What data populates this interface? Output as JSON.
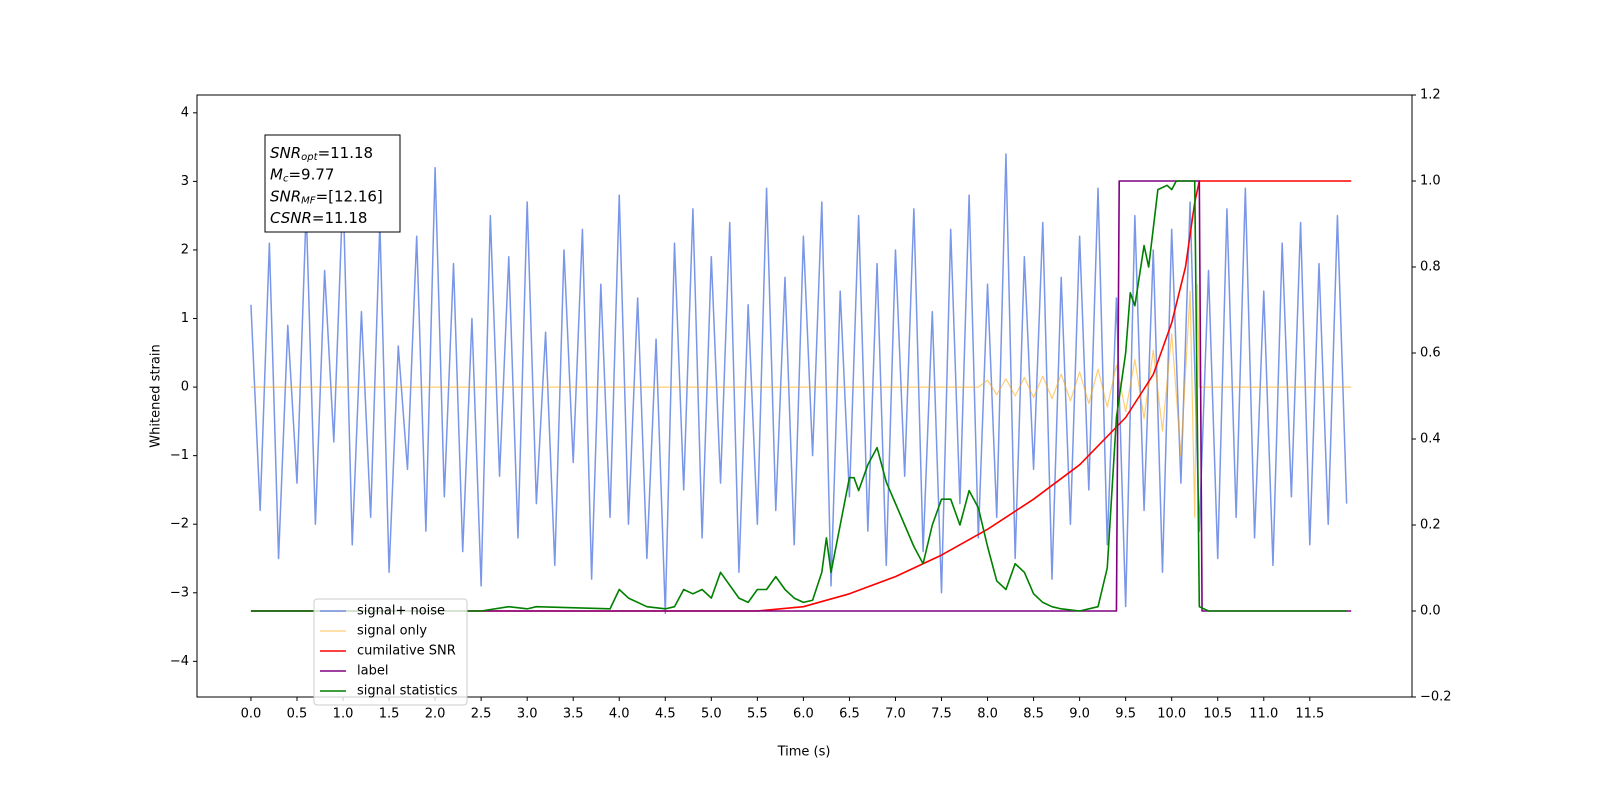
{
  "chart_data": {
    "type": "line",
    "xlabel": "Time (s)",
    "ylabel": "Whitened strain",
    "xlim": [
      -0.586,
      12.61
    ],
    "ylim": [
      -4.52,
      4.26
    ],
    "y2lim": [
      -0.2,
      1.2
    ],
    "xticks": [
      {
        "value": 0,
        "label": "0.0"
      },
      0.5,
      {
        "value": 1,
        "label": "1.0"
      },
      1.5,
      {
        "value": 2,
        "label": "2.0"
      },
      2.5,
      {
        "value": 3,
        "label": "3.0"
      },
      3.5,
      {
        "value": 4,
        "label": "4.0"
      },
      4.5,
      {
        "value": 5,
        "label": "5.0"
      },
      5.5,
      {
        "value": 6,
        "label": "6.0"
      },
      6.5,
      {
        "value": 7,
        "label": "7.0"
      },
      7.5,
      {
        "value": 8,
        "label": "8.0"
      },
      8.5,
      {
        "value": 9,
        "label": "9.0"
      },
      9.5,
      {
        "value": 10,
        "label": "10.0"
      },
      10.5,
      {
        "value": 11,
        "label": "11.0"
      },
      11.5
    ],
    "yticks": [
      4,
      3,
      2,
      1,
      0,
      {
        "value": -1,
        "label": "−1"
      },
      {
        "value": -2,
        "label": "−2"
      },
      {
        "value": -3,
        "label": "−3"
      },
      {
        "value": -4,
        "label": "−4"
      }
    ],
    "y2ticks": [
      {
        "value": -0.2,
        "label": "−0.2"
      },
      {
        "value": 0,
        "label": "0.0"
      },
      0.2,
      0.4,
      0.6,
      0.8,
      {
        "value": 1,
        "label": "1.0"
      },
      1.2
    ],
    "grid": false,
    "legend": "lower left",
    "annotation": [
      {
        "main": "SNR",
        "sub": "opt",
        "rest": "=11.18"
      },
      {
        "main": "M",
        "sub": "c",
        "rest": "=9.77"
      },
      {
        "main": "SNR",
        "sub": "MF",
        "rest": "=[12.16]"
      },
      {
        "main": "CSNR",
        "rest": "=11.18"
      }
    ],
    "series": [
      {
        "name": "signal+ noise",
        "color": "#6b8be6",
        "x": [
          0,
          0.1,
          0.2,
          0.3,
          0.4,
          0.5,
          0.6,
          0.7,
          0.8,
          0.9,
          1,
          1.1,
          1.2,
          1.3,
          1.4,
          1.5,
          1.6,
          1.7,
          1.8,
          1.9,
          2,
          2.1,
          2.2,
          2.3,
          2.4,
          2.5,
          2.6,
          2.7,
          2.8,
          2.9,
          3,
          3.1,
          3.2,
          3.3,
          3.4,
          3.5,
          3.6,
          3.7,
          3.8,
          3.9,
          4,
          4.1,
          4.2,
          4.3,
          4.4,
          4.5,
          4.6,
          4.7,
          4.8,
          4.9,
          5,
          5.1,
          5.2,
          5.3,
          5.4,
          5.5,
          5.6,
          5.7,
          5.8,
          5.9,
          6,
          6.1,
          6.2,
          6.3,
          6.4,
          6.5,
          6.6,
          6.7,
          6.8,
          6.9,
          7,
          7.1,
          7.2,
          7.3,
          7.4,
          7.5,
          7.6,
          7.7,
          7.8,
          7.9,
          8,
          8.1,
          8.2,
          8.3,
          8.4,
          8.5,
          8.6,
          8.7,
          8.8,
          8.9,
          9,
          9.1,
          9.2,
          9.3,
          9.4,
          9.5,
          9.6,
          9.7,
          9.8,
          9.9,
          10,
          10.1,
          10.2,
          10.3,
          10.4,
          10.5,
          10.6,
          10.7,
          10.8,
          10.9,
          11,
          11.1,
          11.2,
          11.3,
          11.4,
          11.5,
          11.6,
          11.7,
          11.8,
          11.9
        ],
        "values": [
          1.2,
          -1.8,
          2.1,
          -2.5,
          0.9,
          -1.4,
          2.6,
          -2.0,
          1.7,
          -0.8,
          2.9,
          -2.3,
          1.1,
          -1.9,
          2.4,
          -2.7,
          0.6,
          -1.2,
          2.2,
          -2.1,
          3.2,
          -1.6,
          1.8,
          -2.4,
          1.0,
          -2.9,
          2.5,
          -1.3,
          1.9,
          -2.2,
          2.7,
          -1.7,
          0.8,
          -2.6,
          2.0,
          -1.1,
          2.3,
          -2.8,
          1.5,
          -1.9,
          2.8,
          -2.0,
          1.3,
          -2.5,
          0.7,
          -3.3,
          2.1,
          -1.5,
          2.6,
          -2.2,
          1.9,
          -1.4,
          2.4,
          -2.7,
          1.2,
          -2.0,
          2.9,
          -1.8,
          1.6,
          -2.3,
          2.2,
          -1.0,
          2.7,
          -2.9,
          1.4,
          -1.6,
          2.5,
          -2.1,
          1.8,
          -2.6,
          2.0,
          -1.3,
          2.6,
          -2.4,
          1.1,
          -3.0,
          2.3,
          -1.7,
          2.8,
          -2.2,
          1.5,
          -1.9,
          3.4,
          -2.5,
          1.9,
          -1.2,
          2.4,
          -2.8,
          1.6,
          -2.0,
          2.2,
          -1.5,
          2.9,
          -2.3,
          1.3,
          -3.2,
          2.5,
          -1.8,
          2.0,
          -2.7,
          2.3,
          -1.4,
          2.7,
          -2.1,
          1.7,
          -2.5,
          2.6,
          -1.9,
          2.9,
          -2.2,
          1.4,
          -2.6,
          2.1,
          -1.6,
          2.4,
          -2.3,
          1.8,
          -2.0,
          2.5,
          -1.7
        ]
      },
      {
        "name": "signal only",
        "color": "#ffa500",
        "x": [
          0,
          7.9,
          8,
          8.1,
          8.2,
          8.3,
          8.4,
          8.5,
          8.6,
          8.7,
          8.8,
          8.9,
          9,
          9.1,
          9.2,
          9.3,
          9.4,
          9.5,
          9.6,
          9.7,
          9.8,
          9.9,
          10,
          10.1,
          10.2,
          10.25,
          10.28,
          10.3,
          11.95
        ],
        "values": [
          0,
          0,
          0.1,
          -0.11,
          0.12,
          -0.13,
          0.14,
          -0.15,
          0.16,
          -0.17,
          0.19,
          -0.2,
          0.22,
          -0.24,
          0.26,
          -0.29,
          0.32,
          -0.36,
          0.4,
          -0.46,
          0.54,
          -0.64,
          0.78,
          -1.0,
          1.4,
          -1.9,
          1.5,
          0,
          0
        ]
      },
      {
        "name": "cumilative SNR",
        "color": "#ff0000",
        "axis": "y2",
        "x": [
          0,
          5.5,
          6,
          6.5,
          7,
          7.5,
          8,
          8.5,
          9,
          9.5,
          9.8,
          10,
          10.15,
          10.25,
          10.3,
          11.95
        ],
        "values": [
          0,
          0,
          0.01,
          0.04,
          0.08,
          0.13,
          0.19,
          0.26,
          0.34,
          0.45,
          0.55,
          0.67,
          0.8,
          0.95,
          1,
          1
        ]
      },
      {
        "name": "label",
        "color": "#800080",
        "axis": "y2",
        "x": [
          0,
          9.4,
          9.43,
          10.3,
          10.33,
          11.95
        ],
        "values": [
          0,
          0,
          1,
          1,
          0,
          0
        ]
      },
      {
        "name": "signal statistics",
        "color": "#008000",
        "axis": "y2",
        "x": [
          0,
          2.5,
          2.8,
          3,
          3.1,
          3.9,
          4,
          4.1,
          4.3,
          4.5,
          4.6,
          4.7,
          4.8,
          4.9,
          5,
          5.1,
          5.3,
          5.4,
          5.5,
          5.6,
          5.7,
          5.8,
          5.9,
          6,
          6.1,
          6.2,
          6.25,
          6.3,
          6.4,
          6.5,
          6.55,
          6.6,
          6.7,
          6.8,
          6.9,
          7,
          7.1,
          7.2,
          7.3,
          7.4,
          7.5,
          7.6,
          7.7,
          7.8,
          7.9,
          8,
          8.1,
          8.2,
          8.3,
          8.4,
          8.5,
          8.6,
          8.7,
          8.8,
          9,
          9.2,
          9.3,
          9.4,
          9.5,
          9.55,
          9.6,
          9.7,
          9.75,
          9.85,
          9.95,
          10,
          10.05,
          10.25,
          10.3,
          10.4,
          11.9
        ],
        "values": [
          0,
          0,
          0.01,
          0.005,
          0.01,
          0.005,
          0.05,
          0.03,
          0.01,
          0.005,
          0.01,
          0.05,
          0.04,
          0.05,
          0.03,
          0.09,
          0.03,
          0.02,
          0.05,
          0.05,
          0.08,
          0.05,
          0.03,
          0.02,
          0.025,
          0.09,
          0.17,
          0.09,
          0.2,
          0.31,
          0.31,
          0.28,
          0.34,
          0.38,
          0.3,
          0.25,
          0.2,
          0.15,
          0.11,
          0.2,
          0.26,
          0.26,
          0.2,
          0.28,
          0.24,
          0.15,
          0.07,
          0.05,
          0.11,
          0.09,
          0.04,
          0.02,
          0.01,
          0.005,
          0,
          0.01,
          0.1,
          0.45,
          0.6,
          0.74,
          0.71,
          0.85,
          0.8,
          0.98,
          0.99,
          0.98,
          1,
          1,
          0.01,
          0,
          0
        ]
      }
    ]
  }
}
